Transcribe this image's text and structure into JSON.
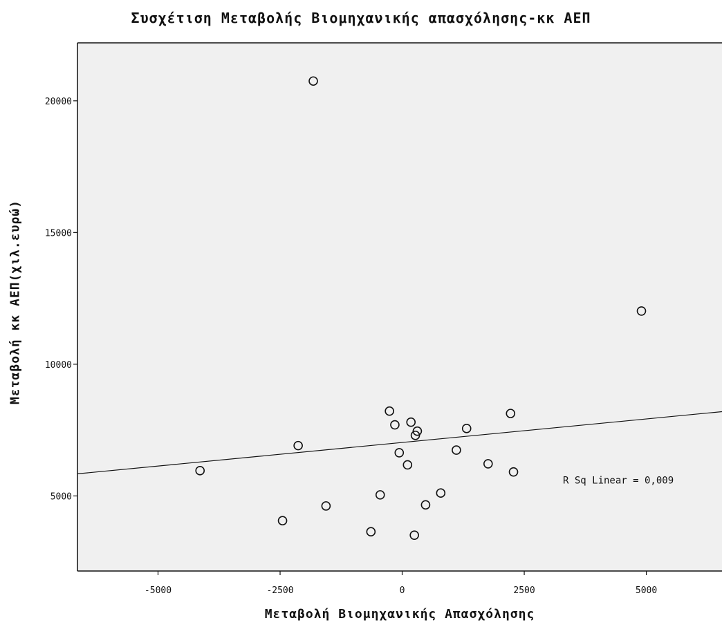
{
  "chart_data": {
    "type": "scatter",
    "title": "Συσχέτιση Μεταβολής Βιομηχανικής απασχόλησης-κκ ΑΕΠ",
    "xlabel": "Μεταβολή Βιομηχανικής Απασχόλησης",
    "ylabel": "Μεταβολή κκ ΑΕΠ(χιλ.ευρώ)",
    "xlim": [
      -6650,
      6550
    ],
    "ylim": [
      2150,
      22200
    ],
    "x_ticks": [
      -5000,
      -2500,
      0,
      2500,
      5000
    ],
    "x_tick_labels": [
      "-5000",
      "-2500",
      "0",
      "2500",
      "5000"
    ],
    "y_ticks": [
      5000,
      10000,
      15000,
      20000
    ],
    "y_tick_labels": [
      "5000",
      "10000",
      "15000",
      "20000"
    ],
    "grid": false,
    "background_color": "#f0f0f0",
    "marker_color": "#111111",
    "fit_line": {
      "type": "linear",
      "x": [
        -6650,
        6550
      ],
      "y": [
        5840,
        8200
      ]
    },
    "annotation": "R Sq Linear = 0,009",
    "points": [
      {
        "x": -1820,
        "y": 20750
      },
      {
        "x": 4900,
        "y": 12020
      },
      {
        "x": -4140,
        "y": 5960
      },
      {
        "x": -2130,
        "y": 6910
      },
      {
        "x": -2450,
        "y": 4060
      },
      {
        "x": -1560,
        "y": 4620
      },
      {
        "x": -640,
        "y": 3640
      },
      {
        "x": -450,
        "y": 5040
      },
      {
        "x": -260,
        "y": 8220
      },
      {
        "x": -150,
        "y": 7700
      },
      {
        "x": -60,
        "y": 6640
      },
      {
        "x": 110,
        "y": 6180
      },
      {
        "x": 180,
        "y": 7800
      },
      {
        "x": 250,
        "y": 3510
      },
      {
        "x": 270,
        "y": 7300
      },
      {
        "x": 310,
        "y": 7460
      },
      {
        "x": 480,
        "y": 4660
      },
      {
        "x": 790,
        "y": 5110
      },
      {
        "x": 1110,
        "y": 6740
      },
      {
        "x": 1320,
        "y": 7560
      },
      {
        "x": 1760,
        "y": 6220
      },
      {
        "x": 2220,
        "y": 8130
      },
      {
        "x": 2280,
        "y": 5910
      }
    ]
  }
}
